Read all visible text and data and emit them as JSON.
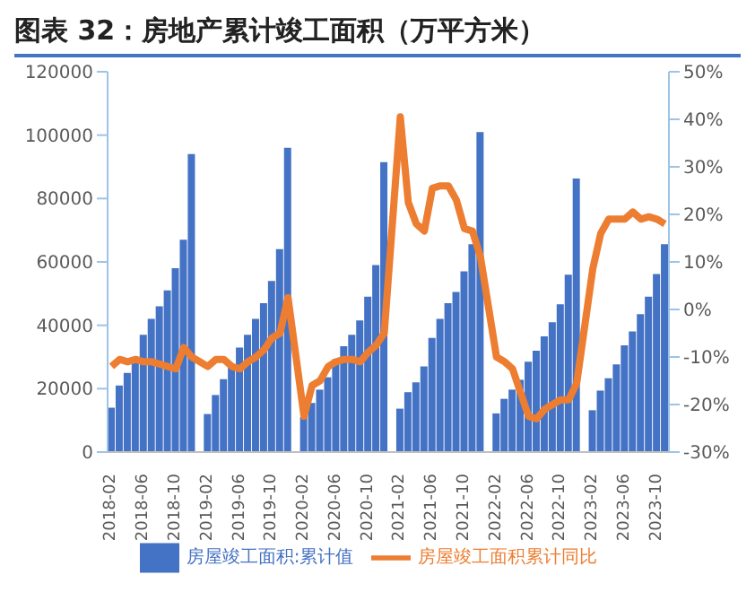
{
  "chart_data": {
    "type": "bar",
    "title": "图表 32：房地产累计竣工面积（万平方米）",
    "categories": [
      "2018-02",
      null,
      null,
      null,
      "2018-06",
      null,
      null,
      null,
      "2018-10",
      null,
      null,
      null,
      "2019-02",
      null,
      null,
      null,
      "2019-06",
      null,
      null,
      null,
      "2019-10",
      null,
      null,
      null,
      "2020-02",
      null,
      null,
      null,
      "2020-06",
      null,
      null,
      null,
      "2020-10",
      null,
      null,
      null,
      "2021-02",
      null,
      null,
      null,
      "2021-06",
      null,
      null,
      null,
      "2021-10",
      null,
      null,
      null,
      "2022-02",
      null,
      null,
      null,
      "2022-06",
      null,
      null,
      null,
      "2022-10",
      null,
      null,
      null,
      "2023-02",
      null,
      null,
      null,
      "2023-06",
      null,
      null,
      null,
      "2023-10",
      null
    ],
    "series": [
      {
        "name": "房屋竣工面积:累计值",
        "color": "#4472c4",
        "values": [
          14000,
          21000,
          25000,
          29000,
          37000,
          42000,
          46000,
          51000,
          58000,
          67000,
          94000,
          null,
          12000,
          18000,
          23000,
          27000,
          33000,
          37000,
          42000,
          47000,
          54000,
          64000,
          96000,
          null,
          11000,
          15500,
          19700,
          23600,
          29300,
          33400,
          37000,
          41500,
          49000,
          59000,
          91500,
          null,
          13700,
          18900,
          22000,
          27000,
          36000,
          42000,
          47000,
          50500,
          57000,
          65600,
          101000,
          null,
          12200,
          16800,
          19700,
          22800,
          28500,
          32000,
          36500,
          41000,
          46600,
          56000,
          86300,
          null,
          13200,
          19400,
          23300,
          27700,
          33700,
          38100,
          43500,
          49000,
          56200,
          65600
        ]
      },
      {
        "name": "房屋竣工面积累计同比",
        "type": "line",
        "axis": "y2",
        "color": "#ed7d31",
        "values": [
          -12,
          -10.5,
          -11,
          -10.5,
          -11,
          -11,
          -11.5,
          -12,
          -12.5,
          -8,
          -10,
          null,
          -12,
          -10.5,
          -10.5,
          -12,
          -12.5,
          -11,
          -10,
          -8.5,
          -6,
          -5,
          2.5,
          null,
          -22.5,
          -16,
          -15,
          -12,
          -11,
          -10.5,
          -10.5,
          -11,
          -9,
          -7.5,
          -5,
          null,
          40.5,
          22.5,
          18,
          16.5,
          25.5,
          26,
          26,
          23,
          17,
          16.5,
          11,
          null,
          -10,
          -11,
          -12.5,
          -17.5,
          -22.5,
          -23,
          -21,
          -20,
          -19,
          -19,
          -15.5,
          null,
          8.5,
          16,
          19,
          19,
          19,
          20.5,
          19,
          19.5,
          19,
          18
        ]
      }
    ],
    "ylim": [
      0,
      120000
    ],
    "yticks": [
      0,
      20000,
      40000,
      60000,
      80000,
      100000,
      120000
    ],
    "y2lim": [
      -30,
      50
    ],
    "y2ticks": [
      {
        "value": -30,
        "label": "-30%"
      },
      {
        "value": -20,
        "label": "-20%"
      },
      {
        "value": -10,
        "label": "-10%"
      },
      {
        "value": 0,
        "label": "0%"
      },
      {
        "value": 10,
        "label": "10%"
      },
      {
        "value": 20,
        "label": "20%"
      },
      {
        "value": 30,
        "label": "30%"
      },
      {
        "value": 40,
        "label": "40%"
      },
      {
        "value": 50,
        "label": "50%"
      }
    ],
    "legend": "bottom"
  }
}
